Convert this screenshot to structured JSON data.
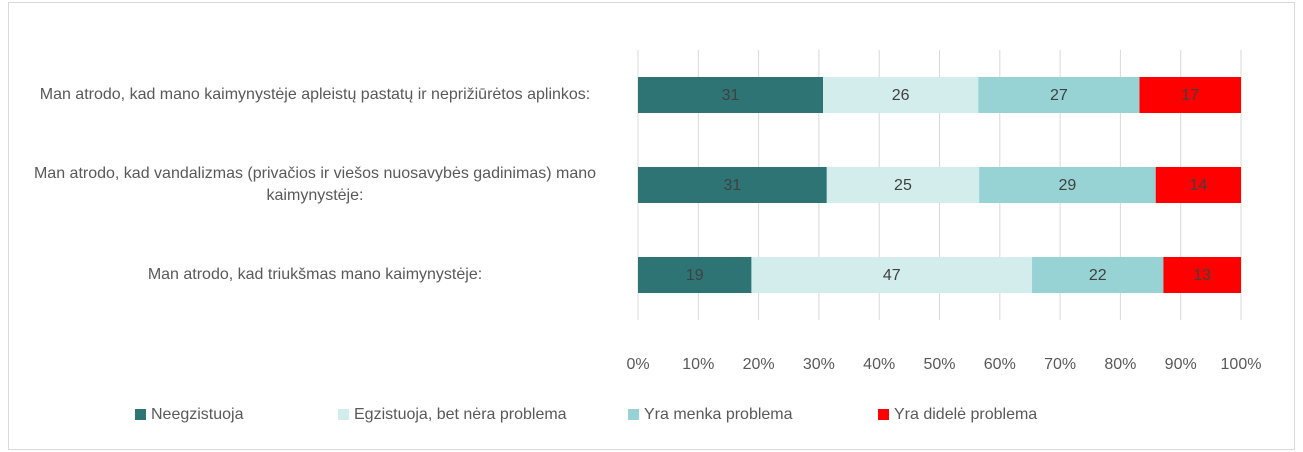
{
  "chart_data": {
    "type": "bar",
    "orientation": "horizontal",
    "stacked": "percent",
    "categories": [
      "Man atrodo, kad mano kaimynystėje apleistų pastatų ir neprižiūrėtos aplinkos:",
      "Man atrodo, kad vandalizmas (privačios ir viešos nuosavybės gadinimas) mano kaimynystėje:",
      "Man atrodo, kad triukšmas mano kaimynystėje:"
    ],
    "series": [
      {
        "name": "Neegzistuoja",
        "color": "#2e7474",
        "values": [
          31,
          31,
          19
        ]
      },
      {
        "name": "Egzistuoja, bet nėra problema",
        "color": "#d3ecec",
        "values": [
          26,
          25,
          47
        ]
      },
      {
        "name": "Yra menka problema",
        "color": "#97d3d5",
        "values": [
          27,
          29,
          22
        ]
      },
      {
        "name": "Yra didelė problema",
        "color": "#ff0000",
        "values": [
          17,
          14,
          13
        ]
      }
    ],
    "xlim": [
      0,
      100
    ],
    "xticks": [
      {
        "value": 0,
        "label": "0%"
      },
      {
        "value": 10,
        "label": "10%"
      },
      {
        "value": 20,
        "label": "20%"
      },
      {
        "value": 30,
        "label": "30%"
      },
      {
        "value": 40,
        "label": "40%"
      },
      {
        "value": 50,
        "label": "50%"
      },
      {
        "value": 60,
        "label": "60%"
      },
      {
        "value": 70,
        "label": "70%"
      },
      {
        "value": 80,
        "label": "80%"
      },
      {
        "value": 90,
        "label": "90%"
      },
      {
        "value": 100,
        "label": "100%"
      }
    ],
    "grid": true,
    "legend": "bottom"
  }
}
